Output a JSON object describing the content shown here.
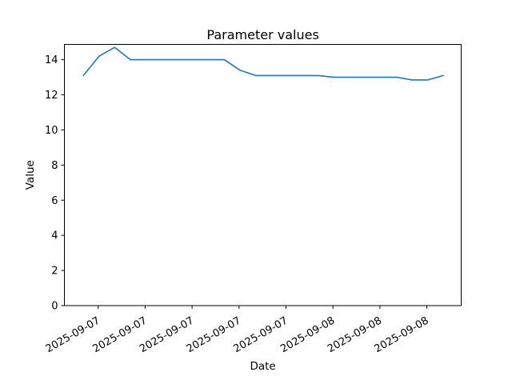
{
  "chart_data": {
    "type": "line",
    "title": "Parameter values",
    "xlabel": "Date",
    "ylabel": "Value",
    "line_color": "#1f77b4",
    "axis_color": "#000000",
    "background_color": "#ffffff",
    "grid": false,
    "legend_position": "none",
    "ylim": [
      0,
      14.87
    ],
    "y_ticks": [
      0,
      2,
      4,
      6,
      8,
      10,
      12,
      14
    ],
    "x_tick_labels": [
      "2025-09-07",
      "2025-09-07",
      "2025-09-07",
      "2025-09-07",
      "2025-09-07",
      "2025-09-08",
      "2025-09-08",
      "2025-09-08"
    ],
    "x_tick_indices": [
      0.94,
      3.94,
      6.94,
      9.94,
      12.94,
      15.94,
      18.94,
      21.94
    ],
    "x_tick_rotation_deg": 30,
    "series": [
      {
        "name": "parameter-values",
        "values": [
          13.1,
          14.2,
          14.7,
          14.0,
          14.0,
          14.0,
          14.0,
          14.0,
          14.0,
          14.0,
          13.4,
          13.1,
          13.1,
          13.1,
          13.1,
          13.1,
          13.0,
          13.0,
          13.0,
          13.0,
          13.0,
          12.85,
          12.85,
          13.1
        ]
      }
    ]
  }
}
